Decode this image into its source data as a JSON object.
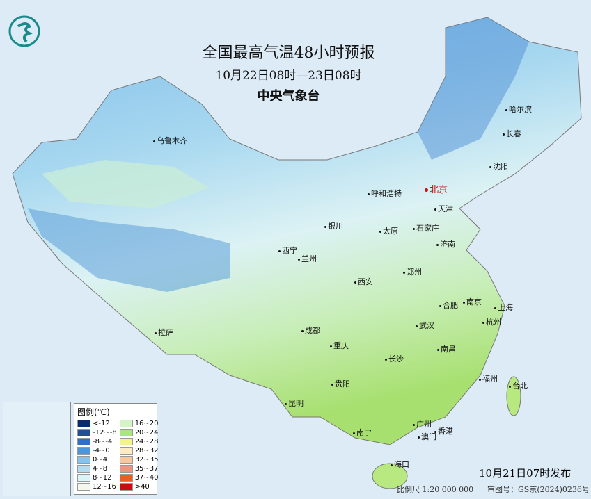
{
  "title": "全国最高气温48小时预报",
  "period": "10月22日08时—23日08时",
  "issuer": "中央气象台",
  "issued": "10月21日07时发布",
  "scale": "比例尺 1:20 000 000",
  "review_no": "审图号：GS京(2024)0236号",
  "logo": {
    "icon": "cma-logo-icon",
    "color": "#1a8a8a"
  },
  "legend": {
    "title": "图例(℃)",
    "items": [
      {
        "label": "<-12",
        "color": "#0a2a6e"
      },
      {
        "label": "-12~-8",
        "color": "#1f4f98"
      },
      {
        "label": "-8~-4",
        "color": "#2f6fc4"
      },
      {
        "label": "-4~0",
        "color": "#4f96d8"
      },
      {
        "label": "0~4",
        "color": "#86c4ec"
      },
      {
        "label": "4~8",
        "color": "#b4dcf0"
      },
      {
        "label": "8~12",
        "color": "#daf4f8"
      },
      {
        "label": "12~16",
        "color": "#f4f8ec"
      },
      {
        "label": "16~20",
        "color": "#d4f4c8"
      },
      {
        "label": "20~24",
        "color": "#a8e878"
      },
      {
        "label": "24~28",
        "color": "#f4f48c"
      },
      {
        "label": "28~32",
        "color": "#fcecc4"
      },
      {
        "label": "32~35",
        "color": "#f8c8a0"
      },
      {
        "label": "35~37",
        "color": "#ee9480"
      },
      {
        "label": "37~40",
        "color": "#e8601c"
      },
      {
        "label": ">40",
        "color": "#c80c14"
      }
    ]
  },
  "cities": [
    "乌鲁木齐",
    "哈尔滨",
    "长春",
    "沈阳",
    "呼和浩特",
    "北京",
    "天津",
    "银川",
    "太原",
    "石家庄",
    "济南",
    "西宁",
    "兰州",
    "郑州",
    "西安",
    "合肥",
    "南京",
    "上海",
    "杭州",
    "武汉",
    "成都",
    "重庆",
    "拉萨",
    "长沙",
    "南昌",
    "福州",
    "台北",
    "贵阳",
    "昆明",
    "南宁",
    "广州",
    "澳门",
    "香港",
    "海口"
  ]
}
